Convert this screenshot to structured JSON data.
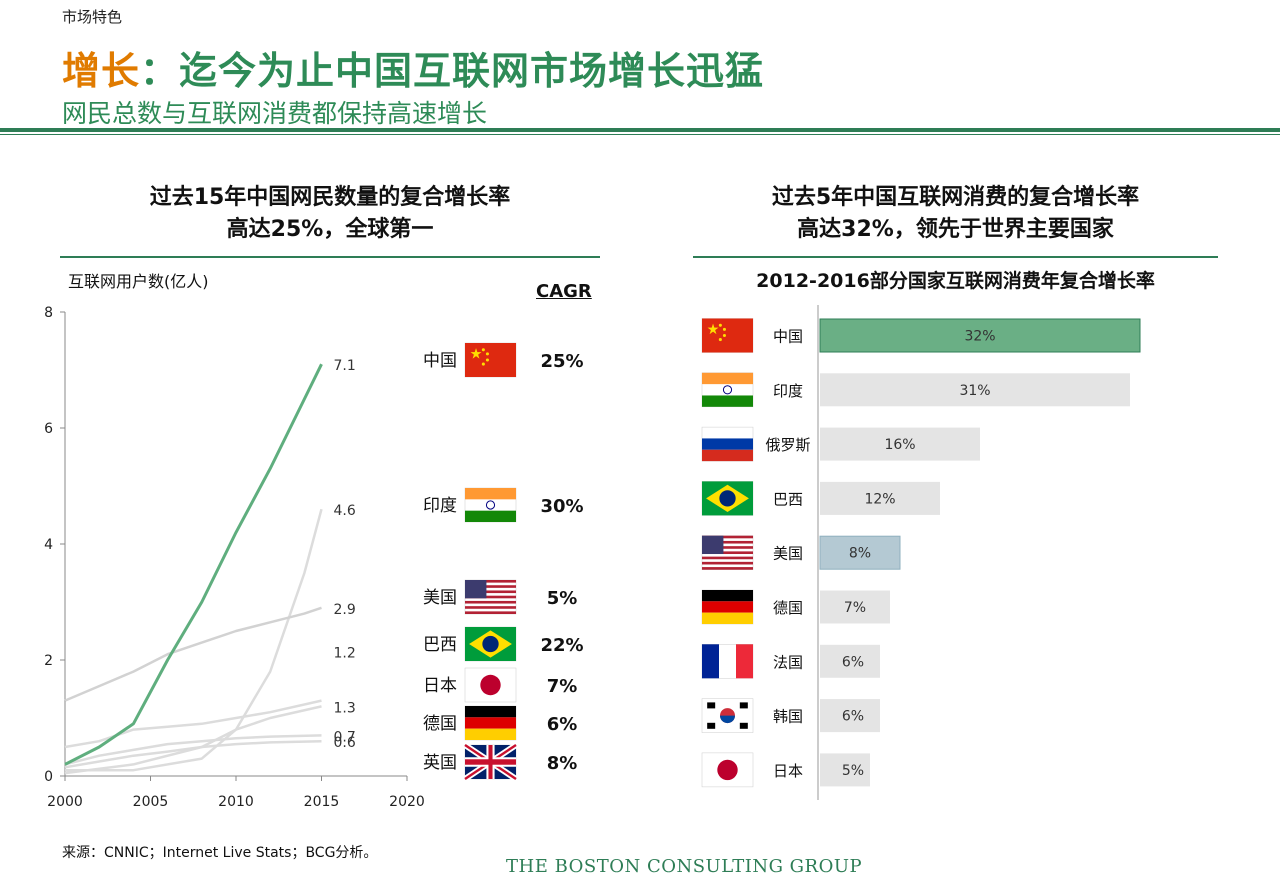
{
  "header": {
    "section_label": "市场特色",
    "headline_accent": "增长",
    "headline_rest": "：迄今为止中国互联网市场增长迅猛",
    "subhead": "网民总数与互联网消费都保持高速增长"
  },
  "left_panel": {
    "title_line1": "过去15年中国网民数量的复合增长率",
    "title_line2": "高达25%，全球第一",
    "cagr_heading": "CAGR"
  },
  "right_panel": {
    "title_line1": "过去5年中国互联网消费的复合增长率",
    "title_line2": "高达32%，领先于世界主要国家",
    "subtitle": "2012-2016部分国家互联网消费年复合增长率"
  },
  "chart_data": [
    {
      "type": "line",
      "title": "",
      "ylabel": "互联网用户数(亿人)",
      "xlabel": "",
      "x_ticks": [
        2000,
        2005,
        2010,
        2015,
        2020
      ],
      "y_ticks": [
        0,
        2,
        4,
        6,
        8
      ],
      "xlim": [
        2000,
        2020
      ],
      "ylim": [
        0,
        8
      ],
      "grid": false,
      "series": [
        {
          "name": "中国",
          "color": "#5fae7e",
          "end_label": "7.1",
          "x": [
            2000,
            2002,
            2004,
            2006,
            2008,
            2010,
            2012,
            2014,
            2015
          ],
          "y": [
            0.2,
            0.5,
            0.9,
            2.0,
            3.0,
            4.2,
            5.3,
            6.5,
            7.1
          ]
        },
        {
          "name": "印度",
          "color": "#dcdcdc",
          "end_label": "4.6",
          "x": [
            2000,
            2004,
            2008,
            2010,
            2012,
            2014,
            2015
          ],
          "y": [
            0.1,
            0.1,
            0.3,
            0.8,
            1.8,
            3.5,
            4.6
          ]
        },
        {
          "name": "美国",
          "color": "#d2d2d2",
          "end_label": "2.9",
          "x": [
            2000,
            2002,
            2004,
            2006,
            2008,
            2010,
            2012,
            2014,
            2015
          ],
          "y": [
            1.3,
            1.55,
            1.8,
            2.1,
            2.3,
            2.5,
            2.65,
            2.8,
            2.9
          ]
        },
        {
          "name": "巴西",
          "color": "#dcdcdc",
          "end_label": "1.2",
          "x": [
            2000,
            2004,
            2008,
            2010,
            2012,
            2015
          ],
          "y": [
            0.05,
            0.2,
            0.5,
            0.8,
            1.0,
            1.2
          ]
        },
        {
          "name": "日本",
          "color": "#dcdcdc",
          "end_label": "1.3",
          "x": [
            2000,
            2002,
            2004,
            2006,
            2008,
            2010,
            2012,
            2015
          ],
          "y": [
            0.5,
            0.6,
            0.8,
            0.85,
            0.9,
            1.0,
            1.1,
            1.3
          ]
        },
        {
          "name": "德国",
          "color": "#dcdcdc",
          "end_label": "0.7",
          "x": [
            2000,
            2002,
            2004,
            2006,
            2008,
            2010,
            2012,
            2015
          ],
          "y": [
            0.2,
            0.35,
            0.45,
            0.55,
            0.6,
            0.65,
            0.68,
            0.7
          ]
        },
        {
          "name": "英国",
          "color": "#dcdcdc",
          "end_label": "0.6",
          "x": [
            2000,
            2002,
            2004,
            2006,
            2008,
            2010,
            2012,
            2015
          ],
          "y": [
            0.15,
            0.25,
            0.35,
            0.42,
            0.5,
            0.55,
            0.58,
            0.6
          ]
        }
      ],
      "legend": [
        {
          "country": "中国",
          "flag": "china-flag",
          "cagr": "25%"
        },
        {
          "country": "印度",
          "flag": "india-flag",
          "cagr": "30%"
        },
        {
          "country": "美国",
          "flag": "usa-flag",
          "cagr": "5%"
        },
        {
          "country": "巴西",
          "flag": "brazil-flag",
          "cagr": "22%"
        },
        {
          "country": "日本",
          "flag": "japan-flag",
          "cagr": "7%"
        },
        {
          "country": "德国",
          "flag": "germany-flag",
          "cagr": "6%"
        },
        {
          "country": "英国",
          "flag": "uk-flag",
          "cagr": "8%"
        }
      ]
    },
    {
      "type": "bar",
      "orientation": "horizontal",
      "title": "2012-2016部分国家互联网消费年复合增长率",
      "xlim": [
        0,
        32
      ],
      "categories": [
        "中国",
        "印度",
        "俄罗斯",
        "巴西",
        "美国",
        "德国",
        "法国",
        "韩国",
        "日本"
      ],
      "flags": [
        "china-flag",
        "india-flag",
        "russia-flag",
        "brazil-flag",
        "usa-flag",
        "germany-flag",
        "france-flag",
        "korea-flag",
        "japan-flag"
      ],
      "values": [
        32,
        31,
        16,
        12,
        8,
        7,
        6,
        6,
        5
      ],
      "labels": [
        "32%",
        "31%",
        "16%",
        "12%",
        "8%",
        "7%",
        "6%",
        "6%",
        "5%"
      ],
      "highlight_colors": {
        "中国": "#6aaf85",
        "美国": "#b4c9d3",
        "default": "#e4e4e4"
      }
    }
  ],
  "footer": {
    "source": "来源：CNNIC；Internet Live Stats；BCG分析。",
    "logo_text": "THE BOSTON CONSULTING GROUP"
  }
}
